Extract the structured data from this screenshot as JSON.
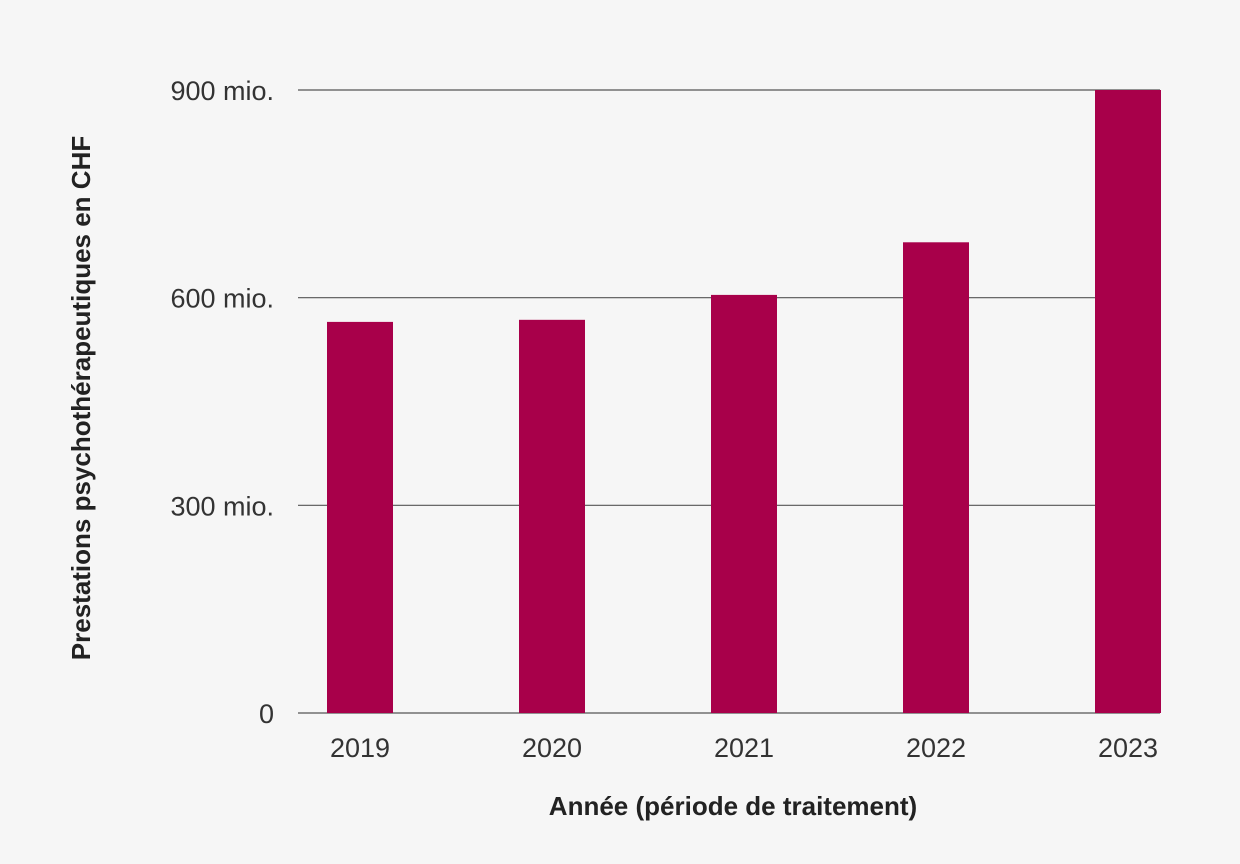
{
  "chart_data": {
    "type": "bar",
    "categories": [
      "2019",
      "2020",
      "2021",
      "2022",
      "2023"
    ],
    "values": [
      565,
      568,
      604,
      680,
      900
    ],
    "xlabel": "Année (période de traitement)",
    "ylabel": "Prestations psychothérapeutiques en CHF",
    "ylim": [
      0,
      900
    ],
    "yticks": [
      {
        "value": 0,
        "label": "0"
      },
      {
        "value": 300,
        "label": "300 mio."
      },
      {
        "value": 600,
        "label": "600 mio."
      },
      {
        "value": 900,
        "label": "900 mio."
      }
    ],
    "grid": true,
    "bar_color": "#a8004a",
    "grid_color": "#555555"
  }
}
